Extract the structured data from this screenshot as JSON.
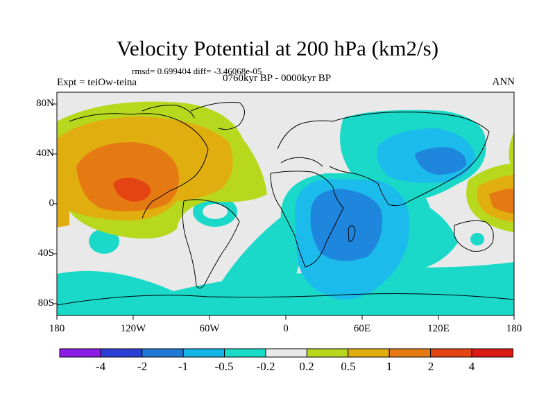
{
  "map": {
    "title": "Velocity Potential at 200 hPa (km2/s)",
    "stats": "rmsd= 0.699404 diff= -3.46068e-05",
    "experiment": "Expt = teiOw-teina",
    "period": "0760kyr BP - 0000kyr BP",
    "season": "ANN",
    "lat_labels": [
      "80N",
      "40N",
      "0",
      "40S",
      "80S"
    ],
    "lon_labels": [
      "180",
      "120W",
      "60W",
      "0",
      "60E",
      "120E",
      "180"
    ]
  },
  "colorbar": {
    "levels": [
      "-4",
      "-2",
      "-1",
      "-0.5",
      "-0.2",
      "0.2",
      "0.5",
      "1",
      "2",
      "4"
    ],
    "colors": [
      "#8a1ee6",
      "#2a3fd6",
      "#1f78d6",
      "#13b4e8",
      "#18dcc8",
      "#e9e9e9",
      "#b8d81e",
      "#e1ae10",
      "#e67a12",
      "#e34412",
      "#dc1a14"
    ]
  },
  "palette": {
    "ocean_white": "#e9e9e9",
    "cyan": "#1ad9c9",
    "lightblue": "#1bbcec",
    "blue": "#1f86de",
    "yellowgreen": "#b8d81e",
    "gold": "#e1ae10",
    "orange": "#e67a12",
    "redorange": "#e34412"
  }
}
